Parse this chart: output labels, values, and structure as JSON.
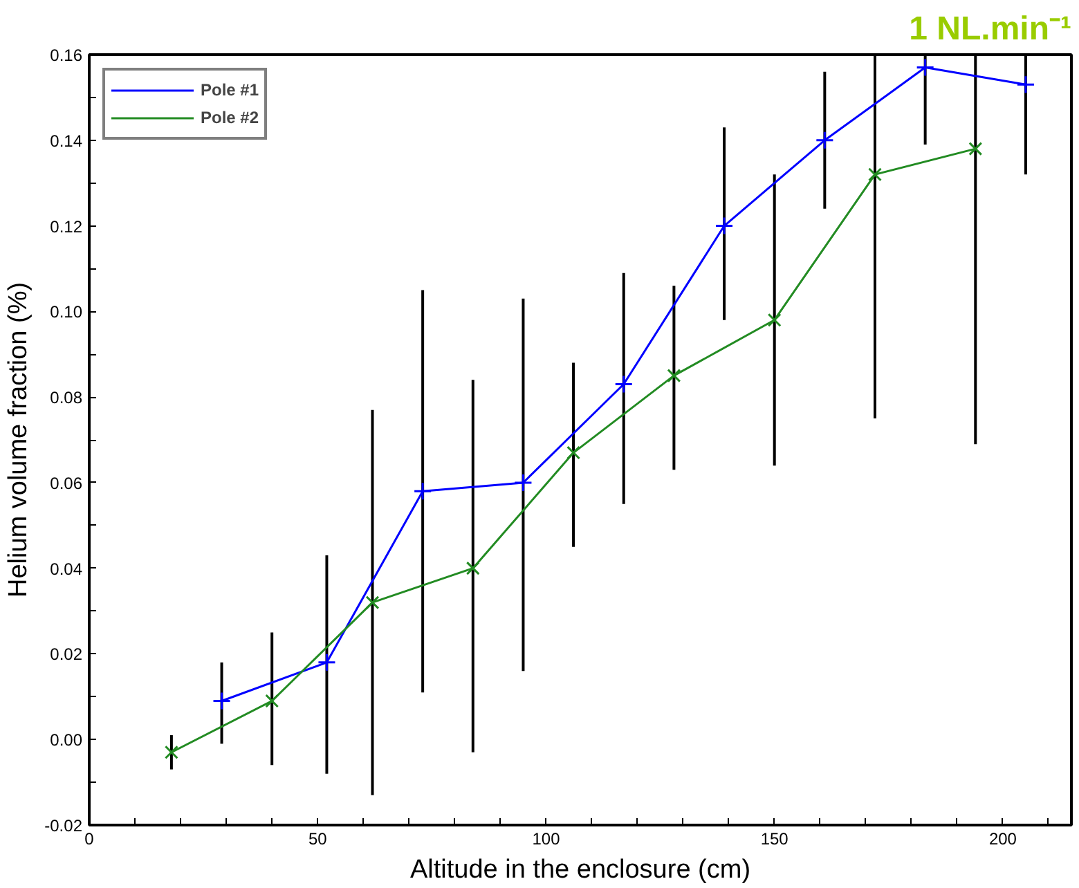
{
  "chart_data": {
    "type": "line",
    "title": "1 NL.min⁻¹",
    "xlabel": "Altitude in the enclosure (cm)",
    "ylabel": "Helium volume fraction (%)",
    "xlim": [
      0,
      215
    ],
    "ylim": [
      -0.02,
      0.16
    ],
    "xticks": [
      0,
      {
        "value": 10,
        "label": null
      },
      {
        "value": 20,
        "label": null
      },
      {
        "value": 30,
        "label": null
      },
      {
        "value": 40,
        "label": null
      },
      50,
      {
        "value": 60,
        "label": null
      },
      {
        "value": 70,
        "label": null
      },
      {
        "value": 80,
        "label": null
      },
      {
        "value": 90,
        "label": null
      },
      100,
      {
        "value": 110,
        "label": null
      },
      {
        "value": 120,
        "label": null
      },
      {
        "value": 130,
        "label": null
      },
      {
        "value": 140,
        "label": null
      },
      150,
      {
        "value": 160,
        "label": null
      },
      {
        "value": 170,
        "label": null
      },
      {
        "value": 180,
        "label": null
      },
      {
        "value": 190,
        "label": null
      },
      200,
      {
        "value": 210,
        "label": null
      }
    ],
    "yticks": [
      {
        "value": -0.02,
        "label": "-0.02"
      },
      {
        "value": -0.01,
        "label": null
      },
      {
        "value": 0,
        "label": "0.00"
      },
      {
        "value": 0.01,
        "label": null
      },
      {
        "value": 0.02,
        "label": "0.02"
      },
      {
        "value": 0.03,
        "label": null
      },
      {
        "value": 0.04,
        "label": "0.04"
      },
      {
        "value": 0.05,
        "label": null
      },
      {
        "value": 0.06,
        "label": "0.06"
      },
      {
        "value": 0.07,
        "label": null
      },
      {
        "value": 0.08,
        "label": "0.08"
      },
      {
        "value": 0.09,
        "label": null
      },
      {
        "value": 0.1,
        "label": "0.10"
      },
      {
        "value": 0.11,
        "label": null
      },
      {
        "value": 0.12,
        "label": "0.12"
      },
      {
        "value": 0.13,
        "label": null
      },
      {
        "value": 0.14,
        "label": "0.14"
      },
      {
        "value": 0.15,
        "label": null
      },
      {
        "value": 0.16,
        "label": "0.16"
      }
    ],
    "grid": false,
    "legend": "top left",
    "line_style": "solid",
    "series": [
      {
        "name": "Pole #1",
        "color": "#0000ff",
        "marker": "cross",
        "x": [
          29,
          52,
          73,
          95,
          117,
          139,
          161,
          183,
          205
        ],
        "values": [
          0.009,
          0.018,
          0.058,
          0.06,
          0.083,
          0.12,
          0.14,
          0.157,
          0.153
        ],
        "errors": [
          [
            -0.001,
            0.018
          ],
          [
            -0.008,
            0.043
          ],
          [
            0.011,
            0.105
          ],
          [
            0.016,
            0.103
          ],
          [
            0.055,
            0.109
          ],
          [
            0.098,
            0.143
          ],
          [
            0.124,
            0.156
          ],
          [
            0.139,
            0.16
          ],
          [
            0.132,
            0.16
          ]
        ]
      },
      {
        "name": "Pole #2",
        "color": "#228b22",
        "marker": "x",
        "x": [
          18,
          40,
          62,
          84,
          106,
          128,
          150,
          172,
          194
        ],
        "values": [
          -0.003,
          0.009,
          0.032,
          0.04,
          0.067,
          0.085,
          0.098,
          0.132,
          0.138
        ],
        "errors": [
          [
            -0.007,
            0.001
          ],
          [
            -0.006,
            0.025
          ],
          [
            -0.013,
            0.077
          ],
          [
            -0.003,
            0.084
          ],
          [
            0.045,
            0.088
          ],
          [
            0.063,
            0.106
          ],
          [
            0.064,
            0.132
          ],
          [
            0.075,
            0.16
          ],
          [
            0.069,
            0.16
          ]
        ]
      }
    ]
  }
}
